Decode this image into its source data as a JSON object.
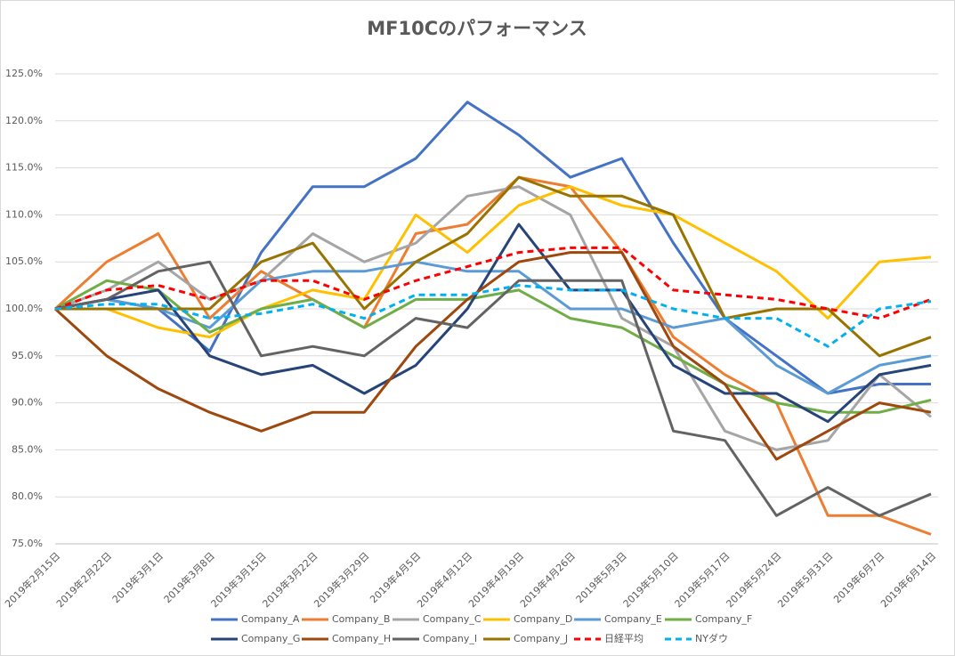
{
  "chart_data": {
    "type": "line",
    "title": "MF10Cのパフォーマンス",
    "categories": [
      "2019年2月15日",
      "2019年2月22日",
      "2019年3月1日",
      "2019年3月8日",
      "2019年3月15日",
      "2019年3月22日",
      "2019年3月29日",
      "2019年4月5日",
      "2019年4月12日",
      "2019年4月19日",
      "2019年4月26日",
      "2019年5月3日",
      "2019年5月10日",
      "2019年5月17日",
      "2019年5月24日",
      "2019年5月31日",
      "2019年6月7日",
      "2019年6月14日"
    ],
    "ylim": [
      75,
      125
    ],
    "yticks": [
      {
        "value": 75,
        "label": "75.0%"
      },
      {
        "value": 80,
        "label": "80.0%"
      },
      {
        "value": 85,
        "label": "85.0%"
      },
      {
        "value": 90,
        "label": "90.0%"
      },
      {
        "value": 95,
        "label": "95.0%"
      },
      {
        "value": 100,
        "label": "100.0%"
      },
      {
        "value": 105,
        "label": "105.0%"
      },
      {
        "value": 110,
        "label": "110.0%"
      },
      {
        "value": 115,
        "label": "115.0%"
      },
      {
        "value": 120,
        "label": "120.0%"
      },
      {
        "value": 125,
        "label": "125.0%"
      }
    ],
    "grid": true,
    "legend": "bottom",
    "series": [
      {
        "name": "Company_A",
        "color": "#4472c4",
        "dashed": false,
        "values": [
          100,
          101,
          100,
          95.5,
          106,
          113,
          113,
          116,
          122,
          118.5,
          114,
          116,
          107,
          99,
          95,
          91,
          92,
          92
        ]
      },
      {
        "name": "Company_B",
        "color": "#ed7d31",
        "dashed": false,
        "values": [
          100,
          105,
          108,
          99,
          104,
          101,
          98,
          108,
          109,
          114,
          113,
          106,
          97,
          93,
          90,
          78,
          78,
          76
        ]
      },
      {
        "name": "Company_C",
        "color": "#a5a5a5",
        "dashed": false,
        "values": [
          100,
          102,
          105,
          101,
          103,
          108,
          105,
          107,
          112,
          113,
          110,
          99,
          96,
          87,
          85,
          86,
          93,
          88.5
        ]
      },
      {
        "name": "Company_D",
        "color": "#ffc000",
        "dashed": false,
        "values": [
          100,
          100,
          98,
          97,
          100,
          102,
          101,
          110,
          106,
          111,
          113,
          111,
          110,
          107,
          104,
          99,
          105,
          105.5
        ]
      },
      {
        "name": "Company_E",
        "color": "#5b9bd5",
        "dashed": false,
        "values": [
          100,
          101,
          100,
          98,
          103,
          104,
          104,
          105,
          104,
          104,
          100,
          100,
          98,
          99,
          94,
          91,
          94,
          95
        ]
      },
      {
        "name": "Company_F",
        "color": "#70ad47",
        "dashed": false,
        "values": [
          100,
          103,
          102,
          97.5,
          100,
          101,
          98,
          101,
          101,
          102,
          99,
          98,
          95,
          92,
          90,
          89,
          89,
          90.3
        ]
      },
      {
        "name": "Company_G",
        "color": "#264478",
        "dashed": false,
        "values": [
          100,
          101,
          102,
          95,
          93,
          94,
          91,
          94,
          100,
          109,
          102,
          102,
          94,
          91,
          91,
          88,
          93,
          94
        ]
      },
      {
        "name": "Company_H",
        "color": "#9e480e",
        "dashed": false,
        "values": [
          100,
          95,
          91.5,
          89,
          87,
          89,
          89,
          96,
          101,
          105,
          106,
          106,
          96,
          92,
          84,
          87,
          90,
          89
        ]
      },
      {
        "name": "Company_I",
        "color": "#636363",
        "dashed": false,
        "values": [
          100,
          101,
          104,
          105,
          95,
          96,
          95,
          99,
          98,
          103,
          103,
          103,
          87,
          86,
          78,
          81,
          78,
          80.3
        ]
      },
      {
        "name": "Company_J",
        "color": "#997300",
        "dashed": false,
        "values": [
          100,
          100,
          100,
          100,
          105,
          107,
          100,
          105,
          108,
          114,
          112,
          112,
          110,
          99,
          100,
          100,
          95,
          97
        ]
      },
      {
        "name": "日経平均",
        "color": "#ff0000",
        "dashed": true,
        "values": [
          100,
          102,
          102.5,
          101,
          103,
          103,
          101,
          103,
          104.5,
          106,
          106.5,
          106.5,
          102,
          101.5,
          101,
          100,
          99,
          101
        ]
      },
      {
        "name": "NYダウ",
        "color": "#00b0f0",
        "dashed": true,
        "values": [
          100,
          100.5,
          100.5,
          99,
          99.5,
          100.5,
          99,
          101.5,
          101.5,
          102.5,
          102,
          102,
          100,
          99,
          99,
          96,
          100,
          100.8
        ]
      }
    ]
  }
}
